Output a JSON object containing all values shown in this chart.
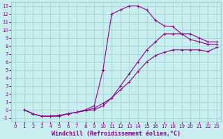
{
  "xlabel": "Windchill (Refroidissement éolien,°C)",
  "background_color": "#c8eef0",
  "line_color": "#8b008b",
  "xlim": [
    -0.5,
    23.5
  ],
  "ylim": [
    -1.5,
    13.5
  ],
  "xticks": [
    0,
    1,
    2,
    3,
    4,
    5,
    6,
    7,
    8,
    9,
    10,
    11,
    12,
    13,
    14,
    15,
    16,
    17,
    18,
    19,
    20,
    21,
    22,
    23
  ],
  "yticks": [
    -1,
    0,
    1,
    2,
    3,
    4,
    5,
    6,
    7,
    8,
    9,
    10,
    11,
    12,
    13
  ],
  "curve1_x": [
    1,
    2,
    3,
    4,
    5,
    6,
    7,
    8,
    9,
    10,
    11,
    12,
    13,
    14,
    15,
    16,
    17,
    18,
    19,
    20,
    21,
    22,
    23
  ],
  "curve1_y": [
    0,
    -0.5,
    -0.8,
    -0.8,
    -0.8,
    -0.5,
    -0.3,
    0.0,
    0.5,
    5.0,
    12.0,
    12.5,
    13.0,
    13.0,
    12.5,
    11.2,
    10.5,
    10.4,
    9.5,
    9.5,
    9.0,
    8.5,
    8.5
  ],
  "curve2_x": [
    1,
    2,
    3,
    4,
    5,
    6,
    7,
    8,
    9,
    10,
    11,
    12,
    13,
    14,
    15,
    16,
    17,
    18,
    19,
    20,
    21,
    22,
    23
  ],
  "curve2_y": [
    0,
    -0.5,
    -0.8,
    -0.8,
    -0.7,
    -0.5,
    -0.3,
    -0.1,
    0.0,
    0.5,
    1.5,
    3.0,
    4.5,
    6.0,
    7.5,
    8.5,
    9.5,
    9.5,
    9.5,
    8.8,
    8.5,
    8.2,
    8.2
  ],
  "curve3_x": [
    1,
    2,
    3,
    4,
    5,
    6,
    7,
    8,
    9,
    10,
    11,
    12,
    13,
    14,
    15,
    16,
    17,
    18,
    19,
    20,
    21,
    22,
    23
  ],
  "curve3_y": [
    0,
    -0.5,
    -0.8,
    -0.8,
    -0.7,
    -0.5,
    -0.3,
    -0.1,
    0.2,
    0.8,
    1.5,
    2.5,
    3.5,
    4.8,
    6.0,
    6.8,
    7.2,
    7.5,
    7.5,
    7.5,
    7.5,
    7.3,
    7.8
  ],
  "marker": "+",
  "markersize": 3.5,
  "linewidth": 0.8,
  "grid_color": "#9dcfcf",
  "tick_fontsize": 5.0,
  "label_fontsize": 6.0
}
